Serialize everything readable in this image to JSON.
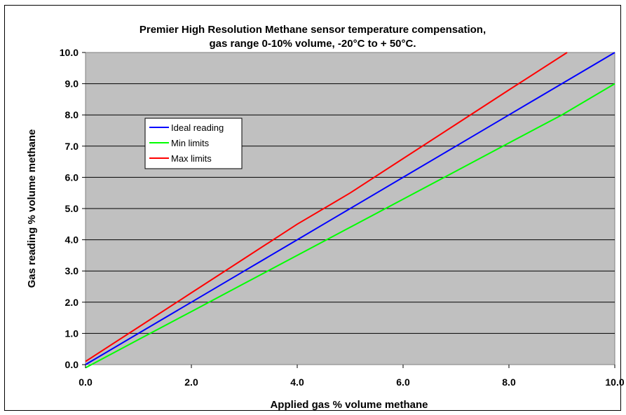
{
  "chart_data": {
    "type": "line",
    "title_line1": "Premier High Resolution Methane sensor temperature compensation,",
    "title_line2": "gas range 0-10% volume, -20°C to + 50°C.",
    "xlabel": "Applied gas % volume methane",
    "ylabel": "Gas reading % volume methane",
    "xlim": [
      0,
      10
    ],
    "ylim": [
      0,
      10
    ],
    "x_ticks": [
      "0.0",
      "2.0",
      "4.0",
      "6.0",
      "8.0",
      "10.0"
    ],
    "y_ticks": [
      "0.0",
      "1.0",
      "2.0",
      "3.0",
      "4.0",
      "5.0",
      "6.0",
      "7.0",
      "8.0",
      "9.0",
      "10.0"
    ],
    "grid": "horizontal",
    "plot_background": "#c0c0c0",
    "legend_position": "upper-left",
    "series": [
      {
        "name": "Ideal reading",
        "color": "#0000ff",
        "points": [
          [
            0,
            0
          ],
          [
            1,
            1
          ],
          [
            2,
            2
          ],
          [
            3,
            3
          ],
          [
            4,
            4
          ],
          [
            4.6,
            4.6
          ],
          [
            5,
            5
          ],
          [
            6,
            6
          ],
          [
            7,
            7
          ],
          [
            8,
            8
          ],
          [
            9,
            9
          ],
          [
            10,
            10
          ]
        ]
      },
      {
        "name": "Min limits",
        "color": "#00ff00",
        "points": [
          [
            0,
            -0.1
          ],
          [
            1,
            0.8
          ],
          [
            2,
            1.7
          ],
          [
            3,
            2.6
          ],
          [
            4,
            3.5
          ],
          [
            5,
            4.4
          ],
          [
            6,
            5.3
          ],
          [
            7,
            6.2
          ],
          [
            8,
            7.1
          ],
          [
            9,
            8.0
          ],
          [
            10,
            9.0
          ]
        ]
      },
      {
        "name": "Max limits",
        "color": "#ff0000",
        "points": [
          [
            0,
            0.1
          ],
          [
            1,
            1.2
          ],
          [
            2,
            2.3
          ],
          [
            3,
            3.4
          ],
          [
            4,
            4.5
          ],
          [
            4.7,
            5.2
          ],
          [
            5,
            5.5
          ],
          [
            6,
            6.6
          ],
          [
            7,
            7.7
          ],
          [
            8,
            8.8
          ],
          [
            9.1,
            10.0
          ]
        ]
      }
    ]
  }
}
